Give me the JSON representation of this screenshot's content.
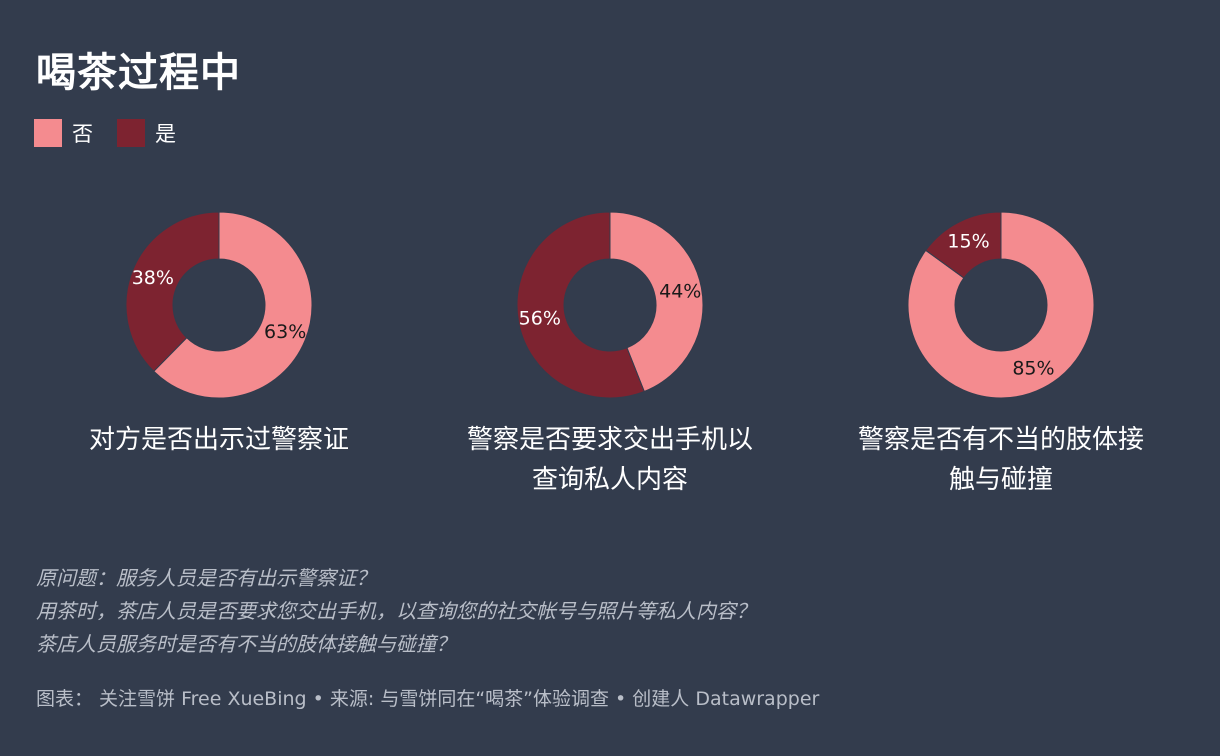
{
  "title": "喝茶过程中",
  "legend": [
    {
      "label": "否",
      "color": "#f48b8f"
    },
    {
      "label": "是",
      "color": "#7d2330"
    }
  ],
  "chart_data": [
    {
      "type": "pie",
      "variant": "donut",
      "title": "对方是否出示过警察证",
      "slices": [
        {
          "name": "否",
          "value": 63,
          "label": "63%",
          "color": "#f48b8f"
        },
        {
          "name": "是",
          "value": 38,
          "label": "38%",
          "color": "#7d2330"
        }
      ]
    },
    {
      "type": "pie",
      "variant": "donut",
      "title": "警察是否要求交出手机以查询私人内容",
      "slices": [
        {
          "name": "否",
          "value": 44,
          "label": "44%",
          "color": "#f48b8f"
        },
        {
          "name": "是",
          "value": 56,
          "label": "56%",
          "color": "#7d2330"
        }
      ]
    },
    {
      "type": "pie",
      "variant": "donut",
      "title": "警察是否有不当的肢体接触与碰撞",
      "slices": [
        {
          "name": "否",
          "value": 85,
          "label": "85%",
          "color": "#f48b8f"
        },
        {
          "name": "是",
          "value": 15,
          "label": "15%",
          "color": "#7d2330"
        }
      ]
    }
  ],
  "captions": [
    [
      "对方是否出示过警察证"
    ],
    [
      "警察是否要求交出手机以",
      "查询私人内容"
    ],
    [
      "警察是否有不当的肢体接",
      "触与碰撞"
    ]
  ],
  "notes": [
    "原问题：服务人员是否有出示警察证？",
    "用茶时，茶店人员是否要求您交出手机，以查询您的社交帐号与照片等私人内容？",
    "茶店人员服务时是否有不当的肢体接触与碰撞？"
  ],
  "footer": "图表： 关注雪饼 Free XueBing • 来源: 与雪饼同在“喝茶”体验调查 • 创建人 Datawrapper"
}
